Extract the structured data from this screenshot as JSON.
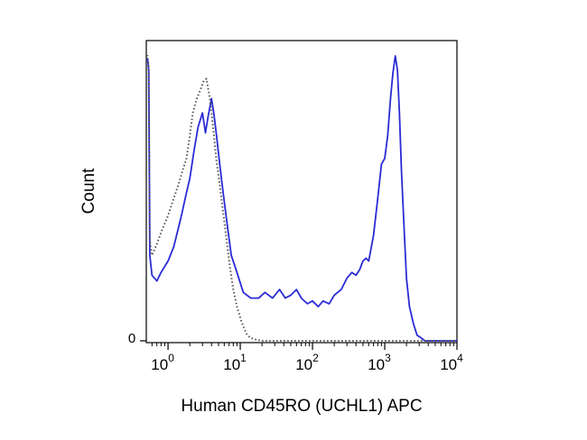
{
  "chart_data": {
    "type": "line",
    "title": "",
    "xlabel": "Human CD45RO (UCHL1) APC",
    "ylabel": "Count",
    "x_scale": "log",
    "xlim": [
      0.5,
      10000
    ],
    "ylim": [
      0,
      100
    ],
    "y_ticks": [
      {
        "value": 0,
        "label": "0"
      }
    ],
    "x_ticks": [
      {
        "value": 1,
        "base": "10",
        "exp": "0"
      },
      {
        "value": 10,
        "base": "10",
        "exp": "1"
      },
      {
        "value": 100,
        "base": "10",
        "exp": "2"
      },
      {
        "value": 1000,
        "base": "10",
        "exp": "3"
      },
      {
        "value": 10000,
        "base": "10",
        "exp": "4"
      }
    ],
    "grid": false,
    "legend": null,
    "series": [
      {
        "style": "solid",
        "color": "#2b2bd6",
        "x": [
          0.5,
          0.52,
          0.54,
          0.56,
          0.6,
          0.7,
          0.8,
          1.0,
          1.2,
          1.5,
          1.8,
          2.0,
          2.3,
          2.6,
          3.0,
          3.3,
          3.6,
          4.0,
          4.3,
          4.7,
          5.2,
          5.8,
          6.5,
          7.5,
          9.0,
          11,
          14,
          18,
          22,
          28,
          35,
          42,
          50,
          60,
          70,
          85,
          100,
          120,
          140,
          170,
          200,
          250,
          300,
          350,
          400,
          450,
          500,
          550,
          600,
          700,
          800,
          900,
          1000,
          1100,
          1200,
          1300,
          1400,
          1500,
          1600,
          1700,
          1850,
          2000,
          2200,
          2500,
          2800,
          3200,
          3600,
          4500,
          6000,
          10000
        ],
        "y": [
          99,
          99,
          95,
          30,
          23,
          21,
          24,
          28,
          33,
          43,
          52,
          57,
          67,
          75,
          80,
          73,
          79,
          85,
          80,
          72,
          62,
          52,
          42,
          30,
          24,
          17,
          15,
          15,
          17,
          15,
          18,
          15,
          16,
          18,
          15,
          13,
          14,
          12,
          14,
          13,
          16,
          18,
          22,
          24,
          23,
          25,
          28,
          29,
          28,
          37,
          50,
          62,
          64,
          72,
          85,
          94,
          100,
          95,
          80,
          60,
          40,
          22,
          12,
          6,
          2,
          1,
          0,
          0,
          0,
          0
        ]
      },
      {
        "style": "dotted",
        "color": "#555555",
        "x": [
          0.5,
          0.52,
          0.54,
          0.56,
          0.6,
          0.65,
          0.7,
          0.8,
          1.0,
          1.2,
          1.4,
          1.6,
          1.8,
          2.0,
          2.2,
          2.5,
          2.8,
          3.1,
          3.4,
          3.8,
          4.2,
          4.7,
          5.2,
          5.8,
          6.5,
          7.2,
          8.0,
          9.0,
          10,
          11,
          12.5,
          14,
          16,
          20,
          30,
          50,
          100,
          1000,
          10000
        ],
        "y": [
          100,
          100,
          96,
          35,
          30,
          32,
          34,
          38,
          44,
          50,
          55,
          60,
          64,
          72,
          80,
          85,
          88,
          91,
          92,
          85,
          75,
          63,
          55,
          45,
          35,
          26,
          18,
          12,
          8,
          5,
          2,
          1,
          0.5,
          0,
          0,
          0,
          0,
          0,
          0
        ]
      }
    ]
  }
}
